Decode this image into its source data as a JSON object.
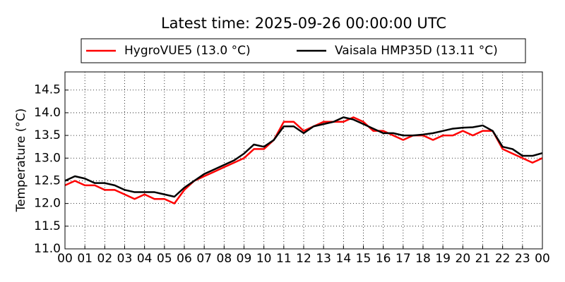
{
  "chart_data": {
    "type": "line",
    "title": "Latest time: 2025-09-26 00:00:00 UTC",
    "y_label": "Temperature (°C)",
    "x": [
      0,
      0.5,
      1,
      1.5,
      2,
      2.5,
      3,
      3.5,
      4,
      4.5,
      5,
      5.5,
      6,
      6.5,
      7,
      7.5,
      8,
      8.5,
      9,
      9.5,
      10,
      10.5,
      11,
      11.5,
      12,
      12.5,
      13,
      13.5,
      14,
      14.5,
      15,
      15.5,
      16,
      16.5,
      17,
      17.5,
      18,
      18.5,
      19,
      19.5,
      20,
      20.5,
      21,
      21.5,
      22,
      22.5,
      23,
      23.5,
      24
    ],
    "series": [
      {
        "name": "HygroVUE5 (13.0 °C)",
        "color": "#ff0000",
        "values": [
          12.4,
          12.5,
          12.4,
          12.4,
          12.3,
          12.3,
          12.2,
          12.1,
          12.2,
          12.1,
          12.1,
          12.0,
          12.3,
          12.5,
          12.6,
          12.7,
          12.8,
          12.9,
          13.0,
          13.2,
          13.2,
          13.4,
          13.8,
          13.8,
          13.6,
          13.7,
          13.8,
          13.8,
          13.8,
          13.9,
          13.8,
          13.6,
          13.6,
          13.5,
          13.4,
          13.5,
          13.5,
          13.4,
          13.5,
          13.5,
          13.6,
          13.5,
          13.6,
          13.6,
          13.2,
          13.1,
          13.0,
          12.9,
          13.0
        ]
      },
      {
        "name": "Vaisala HMP35D (13.11 °C)",
        "color": "#000000",
        "values": [
          12.5,
          12.6,
          12.55,
          12.45,
          12.45,
          12.4,
          12.3,
          12.25,
          12.25,
          12.25,
          12.2,
          12.15,
          12.35,
          12.5,
          12.65,
          12.75,
          12.85,
          12.95,
          13.1,
          13.3,
          13.25,
          13.4,
          13.7,
          13.7,
          13.55,
          13.7,
          13.75,
          13.8,
          13.9,
          13.85,
          13.75,
          13.65,
          13.55,
          13.55,
          13.5,
          13.5,
          13.52,
          13.55,
          13.6,
          13.65,
          13.67,
          13.68,
          13.72,
          13.6,
          13.25,
          13.2,
          13.05,
          13.05,
          13.11
        ]
      }
    ],
    "xlim": [
      0,
      24
    ],
    "xticks": [
      {
        "value": 0,
        "label": "00"
      },
      {
        "value": 1,
        "label": "01"
      },
      {
        "value": 2,
        "label": "02"
      },
      {
        "value": 3,
        "label": "03"
      },
      {
        "value": 4,
        "label": "04"
      },
      {
        "value": 5,
        "label": "05"
      },
      {
        "value": 6,
        "label": "06"
      },
      {
        "value": 7,
        "label": "07"
      },
      {
        "value": 8,
        "label": "08"
      },
      {
        "value": 9,
        "label": "09"
      },
      {
        "value": 10,
        "label": "10"
      },
      {
        "value": 11,
        "label": "11"
      },
      {
        "value": 12,
        "label": "12"
      },
      {
        "value": 13,
        "label": "13"
      },
      {
        "value": 14,
        "label": "14"
      },
      {
        "value": 15,
        "label": "15"
      },
      {
        "value": 16,
        "label": "16"
      },
      {
        "value": 17,
        "label": "17"
      },
      {
        "value": 18,
        "label": "18"
      },
      {
        "value": 19,
        "label": "19"
      },
      {
        "value": 20,
        "label": "20"
      },
      {
        "value": 21,
        "label": "21"
      },
      {
        "value": 22,
        "label": "22"
      },
      {
        "value": 23,
        "label": "23"
      },
      {
        "value": 24,
        "label": "00"
      }
    ],
    "ylim": [
      11,
      14.9
    ],
    "yticks": [
      {
        "value": 11,
        "label": "11.0"
      },
      {
        "value": 11.5,
        "label": "11.5"
      },
      {
        "value": 12,
        "label": "12.0"
      },
      {
        "value": 12.5,
        "label": "12.5"
      },
      {
        "value": 13,
        "label": "13.0"
      },
      {
        "value": 13.5,
        "label": "13.5"
      },
      {
        "value": 14,
        "label": "14.0"
      },
      {
        "value": 14.5,
        "label": "14.5"
      }
    ],
    "grid": true
  }
}
